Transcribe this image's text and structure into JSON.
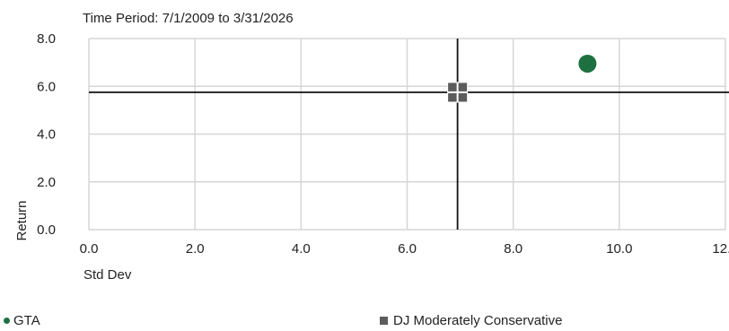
{
  "chart_data": {
    "type": "scatter",
    "title": "Time Period: 7/1/2009 to 3/31/2026",
    "xlabel": "Std Dev",
    "ylabel": "Return",
    "xlim": [
      0,
      12
    ],
    "ylim": [
      0,
      8
    ],
    "xticks": [
      0,
      2,
      4,
      6,
      8,
      10,
      12
    ],
    "yticks": [
      0,
      2,
      4,
      6,
      8
    ],
    "xtick_labels": [
      "0.0",
      "2.0",
      "4.0",
      "6.0",
      "8.0",
      "10.0",
      "12.0"
    ],
    "ytick_labels": [
      "0.0",
      "2.0",
      "4.0",
      "6.0",
      "8.0"
    ],
    "grid": true,
    "reference_lines": {
      "x": 6.95,
      "y": 5.75
    },
    "series": [
      {
        "name": "GTA",
        "x": 9.4,
        "y": 6.95,
        "marker": "circle",
        "color": "#1e7041"
      },
      {
        "name": "DJ Moderately Conservative",
        "x": 6.95,
        "y": 5.75,
        "marker": "square",
        "color": "#5c5c5c"
      }
    ],
    "legend_position": "bottom"
  }
}
